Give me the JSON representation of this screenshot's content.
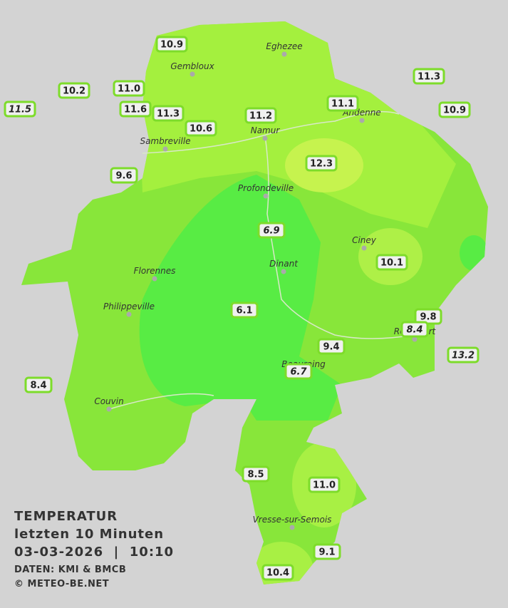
{
  "map": {
    "towns": [
      "Eghezee",
      "Gembloux",
      "Andenne",
      "Namur",
      "Sambreville",
      "Profondeville",
      "Ciney",
      "Dinant",
      "Florennes",
      "Philippeville",
      "Rochefort",
      "Beauraing",
      "Couvin",
      "Vresse-sur-Semois"
    ],
    "stations": [
      {
        "value": 10.9,
        "label": "10.9",
        "italic": false
      },
      {
        "value": 10.2,
        "label": "10.2",
        "italic": false
      },
      {
        "value": 11.5,
        "label": "11.5",
        "italic": true
      },
      {
        "value": 11.0,
        "label": "11.0",
        "italic": false
      },
      {
        "value": 11.6,
        "label": "11.6",
        "italic": false
      },
      {
        "value": 11.3,
        "label": "11.3",
        "italic": false
      },
      {
        "value": 10.6,
        "label": "10.6",
        "italic": false
      },
      {
        "value": 11.2,
        "label": "11.2",
        "italic": false
      },
      {
        "value": 11.1,
        "label": "11.1",
        "italic": false
      },
      {
        "value": 11.3,
        "label": "11.3",
        "italic": false
      },
      {
        "value": 10.9,
        "label": "10.9",
        "italic": false
      },
      {
        "value": 12.3,
        "label": "12.3",
        "italic": false
      },
      {
        "value": 9.6,
        "label": "9.6",
        "italic": false
      },
      {
        "value": 6.9,
        "label": "6.9",
        "italic": true
      },
      {
        "value": 10.1,
        "label": "10.1",
        "italic": false
      },
      {
        "value": 6.1,
        "label": "6.1",
        "italic": false
      },
      {
        "value": 9.8,
        "label": "9.8",
        "italic": false
      },
      {
        "value": 8.4,
        "label": "8.4",
        "italic": true
      },
      {
        "value": 9.4,
        "label": "9.4",
        "italic": false
      },
      {
        "value": 13.2,
        "label": "13.2",
        "italic": true
      },
      {
        "value": 6.7,
        "label": "6.7",
        "italic": true
      },
      {
        "value": 8.4,
        "label": "8.4",
        "italic": false
      },
      {
        "value": 8.5,
        "label": "8.5",
        "italic": false
      },
      {
        "value": 11.0,
        "label": "11.0",
        "italic": false
      },
      {
        "value": 9.1,
        "label": "9.1",
        "italic": false
      },
      {
        "value": 10.4,
        "label": "10.4",
        "italic": false
      }
    ]
  },
  "caption": {
    "title": "TEMPERATUR",
    "subtitle": "letzten 10 Minuten",
    "timestamp": "03-03-2026  |  10:10",
    "source": "DATEN: KMI & BMCB",
    "credit": "© METEO-BE.NET"
  }
}
